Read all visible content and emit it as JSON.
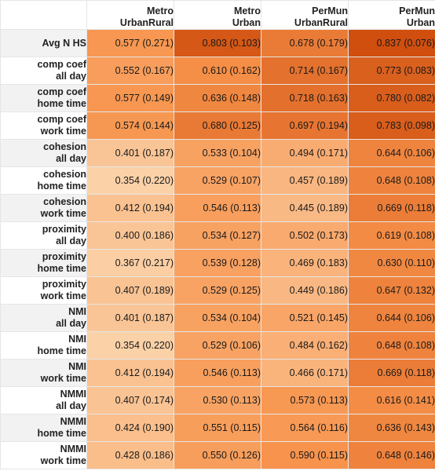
{
  "chart_data": {
    "type": "table",
    "subtype": "heatmap",
    "columns": [
      {
        "line1": "Metro",
        "line2": "UrbanRural"
      },
      {
        "line1": "Metro",
        "line2": "Urban"
      },
      {
        "line1": "PerMun",
        "line2": "UrbanRural"
      },
      {
        "line1": "PerMun",
        "line2": "Urban"
      }
    ],
    "color_scale": {
      "low": "#fbd1a8",
      "mid": "#f7924a",
      "high": "#d04e0e",
      "min": 0.354,
      "max": 0.837
    },
    "rows": [
      {
        "line1": "Avg N HS",
        "line2": "",
        "values": [
          0.577,
          0.803,
          0.678,
          0.837
        ],
        "sds": [
          0.271,
          0.103,
          0.179,
          0.076
        ]
      },
      {
        "line1": "comp coef",
        "line2": "all day",
        "values": [
          0.552,
          0.61,
          0.714,
          0.773
        ],
        "sds": [
          0.167,
          0.162,
          0.167,
          0.083
        ]
      },
      {
        "line1": "comp coef",
        "line2": "home time",
        "values": [
          0.577,
          0.636,
          0.718,
          0.78
        ],
        "sds": [
          0.149,
          0.148,
          0.163,
          0.082
        ]
      },
      {
        "line1": "comp coef",
        "line2": "work time",
        "values": [
          0.574,
          0.68,
          0.697,
          0.783
        ],
        "sds": [
          0.144,
          0.125,
          0.194,
          0.098
        ]
      },
      {
        "line1": "cohesion",
        "line2": "all day",
        "values": [
          0.401,
          0.533,
          0.494,
          0.644
        ],
        "sds": [
          0.187,
          0.104,
          0.171,
          0.106
        ]
      },
      {
        "line1": "cohesion",
        "line2": "home time",
        "values": [
          0.354,
          0.529,
          0.457,
          0.648
        ],
        "sds": [
          0.22,
          0.107,
          0.189,
          0.108
        ]
      },
      {
        "line1": "cohesion",
        "line2": "work time",
        "values": [
          0.412,
          0.546,
          0.445,
          0.669
        ],
        "sds": [
          0.194,
          0.113,
          0.189,
          0.118
        ]
      },
      {
        "line1": "proximity",
        "line2": "all day",
        "values": [
          0.4,
          0.534,
          0.502,
          0.619
        ],
        "sds": [
          0.186,
          0.127,
          0.173,
          0.108
        ]
      },
      {
        "line1": "proximity",
        "line2": "home time",
        "values": [
          0.367,
          0.539,
          0.469,
          0.63
        ],
        "sds": [
          0.217,
          0.128,
          0.183,
          0.11
        ]
      },
      {
        "line1": "proximity",
        "line2": "work time",
        "values": [
          0.407,
          0.529,
          0.449,
          0.647
        ],
        "sds": [
          0.189,
          0.125,
          0.186,
          0.132
        ]
      },
      {
        "line1": "NMI",
        "line2": "all day",
        "values": [
          0.401,
          0.534,
          0.521,
          0.644
        ],
        "sds": [
          0.187,
          0.104,
          0.145,
          0.106
        ]
      },
      {
        "line1": "NMI",
        "line2": "home time",
        "values": [
          0.354,
          0.529,
          0.484,
          0.648
        ],
        "sds": [
          0.22,
          0.106,
          0.162,
          0.108
        ]
      },
      {
        "line1": "NMI",
        "line2": "work time",
        "values": [
          0.412,
          0.546,
          0.466,
          0.669
        ],
        "sds": [
          0.194,
          0.113,
          0.171,
          0.118
        ]
      },
      {
        "line1": "NMMI",
        "line2": "all day",
        "values": [
          0.407,
          0.53,
          0.573,
          0.616
        ],
        "sds": [
          0.174,
          0.113,
          0.113,
          0.141
        ]
      },
      {
        "line1": "NMMI",
        "line2": "home time",
        "values": [
          0.424,
          0.551,
          0.564,
          0.636
        ],
        "sds": [
          0.19,
          0.115,
          0.116,
          0.143
        ]
      },
      {
        "line1": "NMMI",
        "line2": "work time",
        "values": [
          0.428,
          0.55,
          0.59,
          0.648
        ],
        "sds": [
          0.186,
          0.126,
          0.115,
          0.146
        ]
      }
    ]
  }
}
